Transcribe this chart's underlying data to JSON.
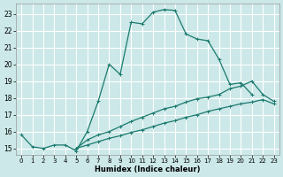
{
  "xlabel": "Humidex (Indice chaleur)",
  "xlim": [
    -0.5,
    23.5
  ],
  "ylim": [
    14.6,
    23.6
  ],
  "yticks": [
    15,
    16,
    17,
    18,
    19,
    20,
    21,
    22,
    23
  ],
  "xticks": [
    0,
    1,
    2,
    3,
    4,
    5,
    6,
    7,
    8,
    9,
    10,
    11,
    12,
    13,
    14,
    15,
    16,
    17,
    18,
    19,
    20,
    21,
    22,
    23
  ],
  "bg_color": "#cce8e8",
  "grid_color": "#ffffff",
  "line_color": "#1a7a6e",
  "lines": [
    {
      "x": [
        0,
        1,
        2,
        3,
        4,
        5,
        6,
        7,
        8,
        9,
        10,
        11,
        12,
        13,
        14,
        15,
        16,
        17,
        18,
        19,
        20,
        21
      ],
      "y": [
        15.8,
        15.1,
        15.0,
        15.2,
        15.2,
        14.85,
        16.0,
        17.8,
        20.0,
        19.4,
        22.5,
        22.4,
        23.1,
        23.25,
        23.2,
        21.8,
        21.5,
        21.4,
        20.3,
        18.8,
        18.9,
        18.2
      ]
    },
    {
      "x": [
        5,
        6,
        7,
        8,
        9,
        10,
        11,
        12,
        13,
        14,
        15,
        16,
        17,
        18,
        19,
        20,
        21,
        22,
        23
      ],
      "y": [
        15.0,
        15.5,
        15.8,
        16.0,
        16.3,
        16.6,
        16.85,
        17.1,
        17.35,
        17.5,
        17.75,
        17.95,
        18.05,
        18.2,
        18.55,
        18.7,
        19.0,
        18.2,
        17.8
      ]
    },
    {
      "x": [
        5,
        6,
        7,
        8,
        9,
        10,
        11,
        12,
        13,
        14,
        15,
        16,
        17,
        18,
        19,
        20,
        21,
        22,
        23
      ],
      "y": [
        15.0,
        15.2,
        15.4,
        15.6,
        15.75,
        15.95,
        16.1,
        16.3,
        16.5,
        16.65,
        16.85,
        17.0,
        17.2,
        17.35,
        17.5,
        17.65,
        17.75,
        17.9,
        17.65
      ]
    }
  ]
}
